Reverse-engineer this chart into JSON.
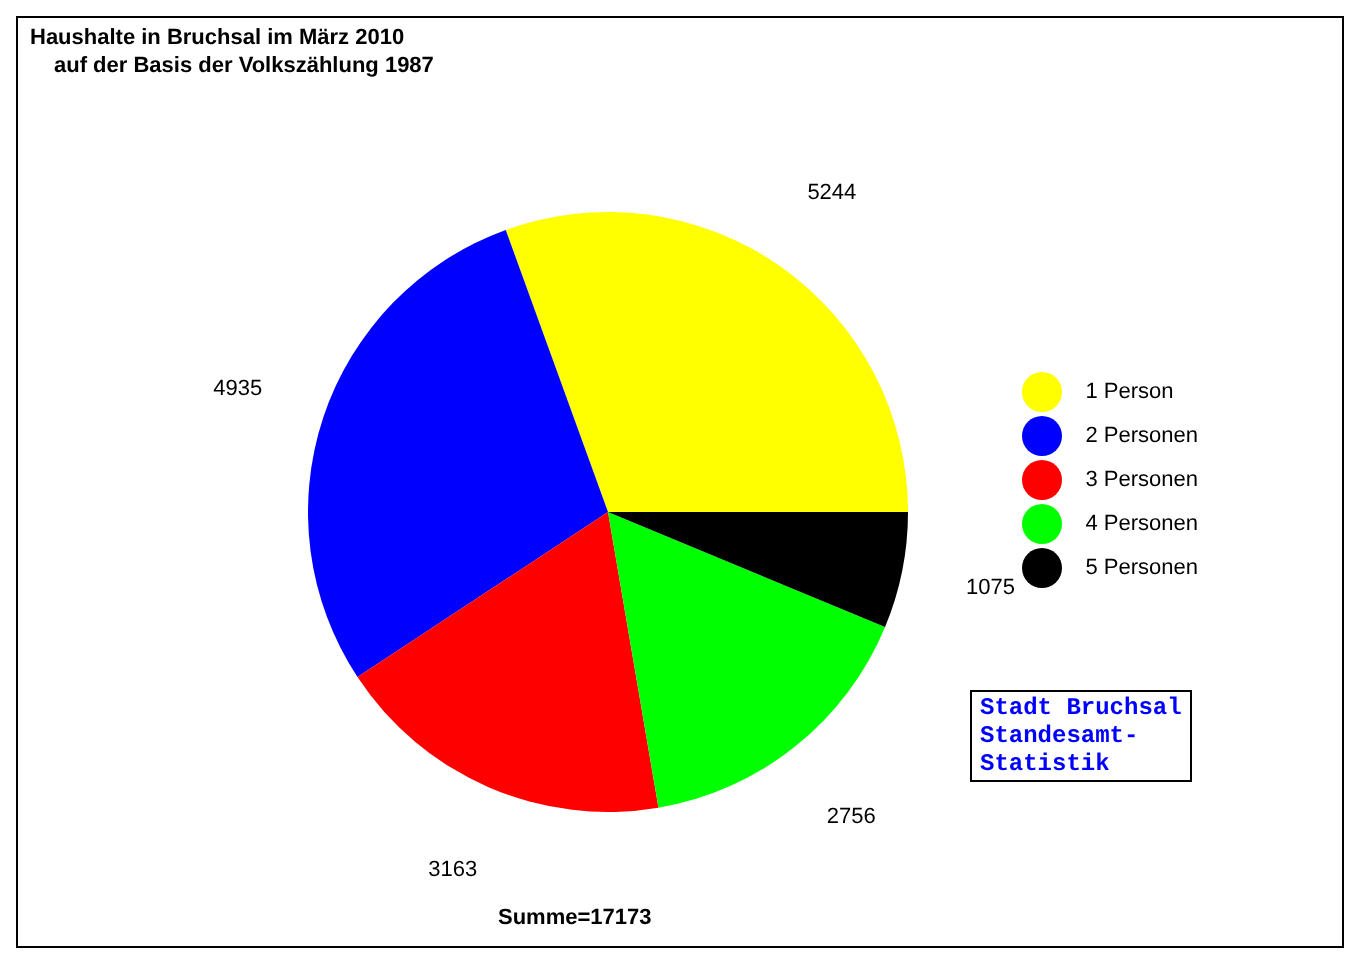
{
  "chart_data": {
    "type": "pie",
    "title": "Haushalte in Bruchsal im März 2010",
    "subtitle": "auf der Basis der Volkszählung 1987",
    "categories": [
      "1 Person",
      "2 Personen",
      "3 Personen",
      "4 Personen",
      "5 Personen"
    ],
    "values": [
      5244,
      4935,
      3163,
      2756,
      1075
    ],
    "colors": [
      "#ffff00",
      "#0000ff",
      "#ff0000",
      "#00ff00",
      "#000000"
    ],
    "data_labels": true,
    "legend": "right",
    "annotations": [
      "Summe=17173",
      "Stadt Bruchsal\nStandesamt-\nStatistik"
    ]
  }
}
